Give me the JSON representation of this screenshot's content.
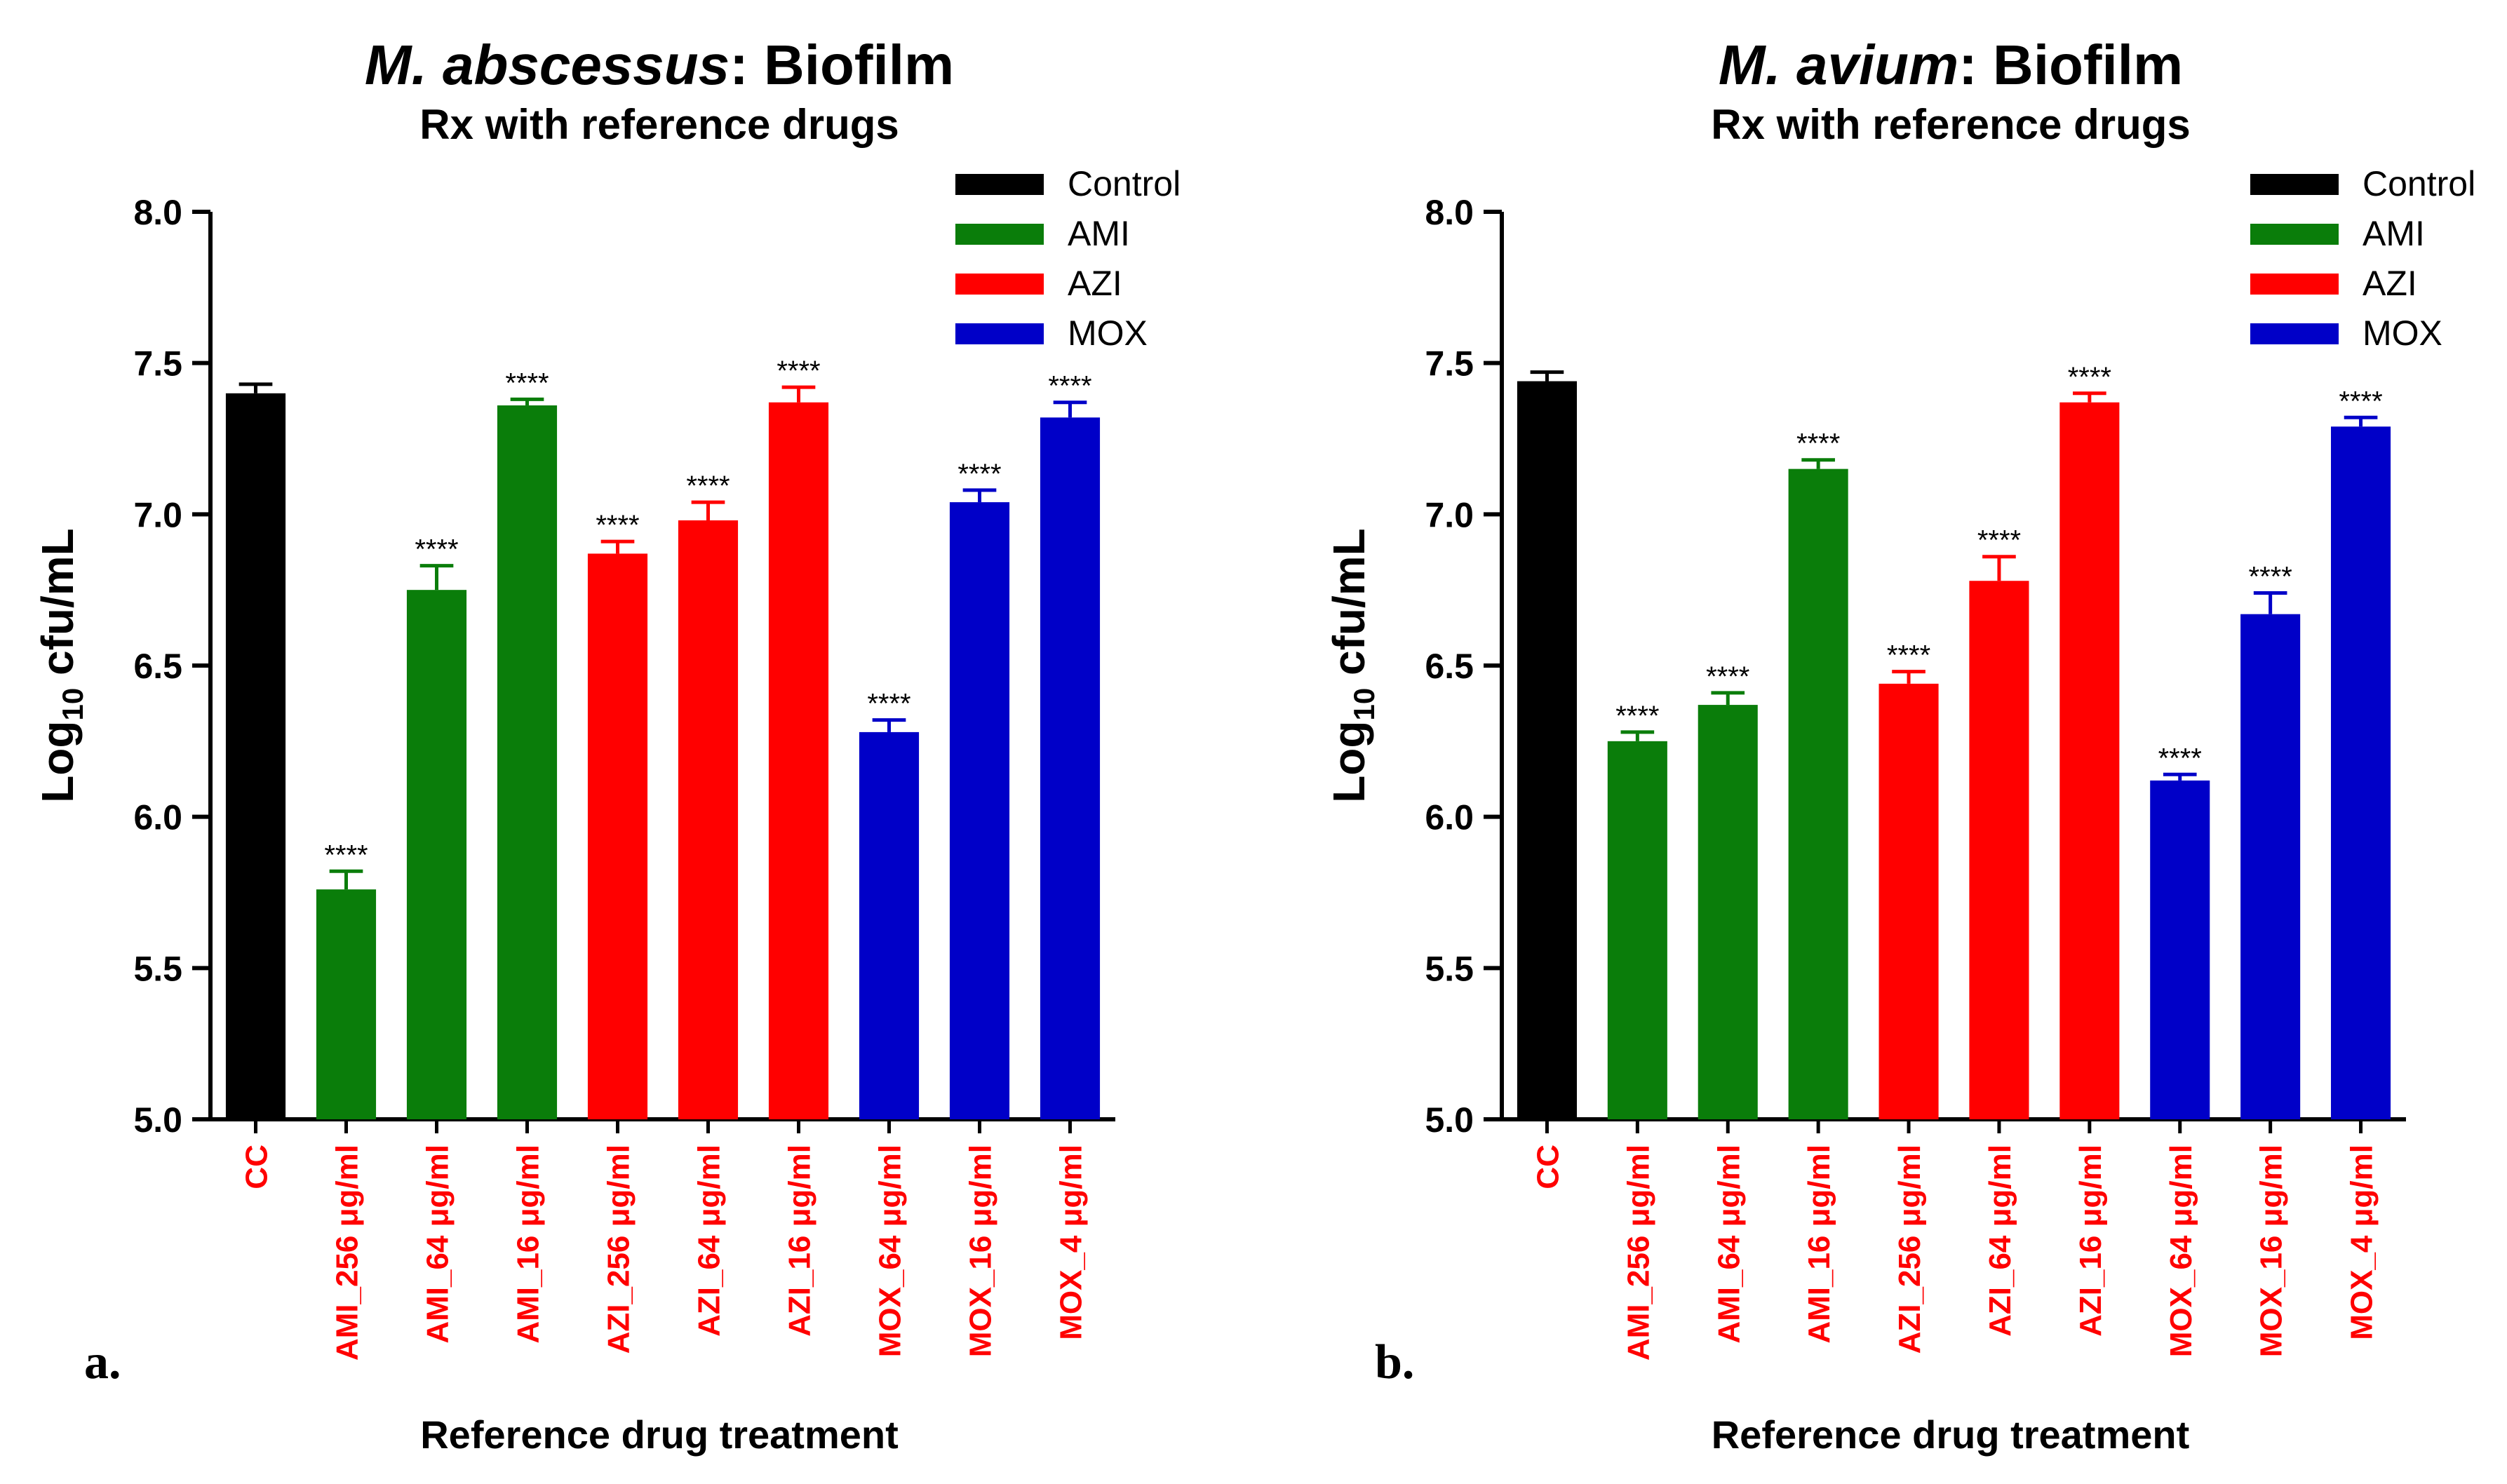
{
  "chart_data": [
    {
      "type": "bar",
      "panel_label": "a.",
      "title": "M. abscessus",
      "title_suffix": ": Biofilm",
      "subtitle": "Rx with reference drugs",
      "ylabel_main": "Log",
      "ylabel_sub": "10",
      "ylabel_rest": " cfu/mL",
      "xlabel": "Reference drug treatment",
      "ylim": [
        5.0,
        8.0
      ],
      "yticks": [
        "5.0",
        "5.5",
        "6.0",
        "6.5",
        "7.0",
        "7.5",
        "8.0"
      ],
      "legend": [
        "Control",
        "AMI",
        "AZI",
        "MOX"
      ],
      "legend_position": "top-right",
      "categories": [
        "CC",
        "AMI_256 μg/ml",
        "AMI_64 μg/ml",
        "AMI_16 μg/ml",
        "AZI_256 μg/ml",
        "AZI_64 μg/ml",
        "AZI_16 μg/ml",
        "MOX_64 μg/ml",
        "MOX_16 μg/ml",
        "MOX_4 μg/ml"
      ],
      "groups": [
        "Control",
        "AMI",
        "AMI",
        "AMI",
        "AZI",
        "AZI",
        "AZI",
        "MOX",
        "MOX",
        "MOX"
      ],
      "values": [
        7.4,
        5.76,
        6.75,
        7.36,
        6.87,
        6.98,
        7.37,
        6.28,
        7.04,
        7.32
      ],
      "errors": [
        0.03,
        0.06,
        0.08,
        0.02,
        0.04,
        0.06,
        0.05,
        0.04,
        0.04,
        0.05
      ],
      "significance": [
        "",
        "****",
        "****",
        "****",
        "****",
        "****",
        "****",
        "****",
        "****",
        "****"
      ]
    },
    {
      "type": "bar",
      "panel_label": "b.",
      "title": "M. avium",
      "title_suffix": ": Biofilm",
      "subtitle": "Rx with reference drugs",
      "ylabel_main": "Log",
      "ylabel_sub": "10",
      "ylabel_rest": " cfu/mL",
      "xlabel": "Reference drug treatment",
      "ylim": [
        5.0,
        8.0
      ],
      "yticks": [
        "5.0",
        "5.5",
        "6.0",
        "6.5",
        "7.0",
        "7.5",
        "8.0"
      ],
      "legend": [
        "Control",
        "AMI",
        "AZI",
        "MOX"
      ],
      "legend_position": "top-right",
      "categories": [
        "CC",
        "AMI_256 μg/ml",
        "AMI_64 μg/ml",
        "AMI_16 μg/ml",
        "AZI_256 μg/ml",
        "AZI_64 μg/ml",
        "AZI_16 μg/ml",
        "MOX_64 μg/ml",
        "MOX_16 μg/ml",
        "MOX_4 μg/ml"
      ],
      "groups": [
        "Control",
        "AMI",
        "AMI",
        "AMI",
        "AZI",
        "AZI",
        "AZI",
        "MOX",
        "MOX",
        "MOX"
      ],
      "values": [
        7.44,
        6.25,
        6.37,
        7.15,
        6.44,
        6.78,
        7.37,
        6.12,
        6.67,
        7.29
      ],
      "errors": [
        0.03,
        0.03,
        0.04,
        0.03,
        0.04,
        0.08,
        0.03,
        0.02,
        0.07,
        0.03
      ],
      "significance": [
        "",
        "****",
        "****",
        "****",
        "****",
        "****",
        "****",
        "****",
        "****",
        "****"
      ]
    }
  ],
  "colors": {
    "Control": "#000000",
    "AMI": "#0a7d0a",
    "AZI": "#ff0000",
    "MOX": "#0000c8",
    "tick_label": "#ff0000",
    "axis": "#000000"
  }
}
